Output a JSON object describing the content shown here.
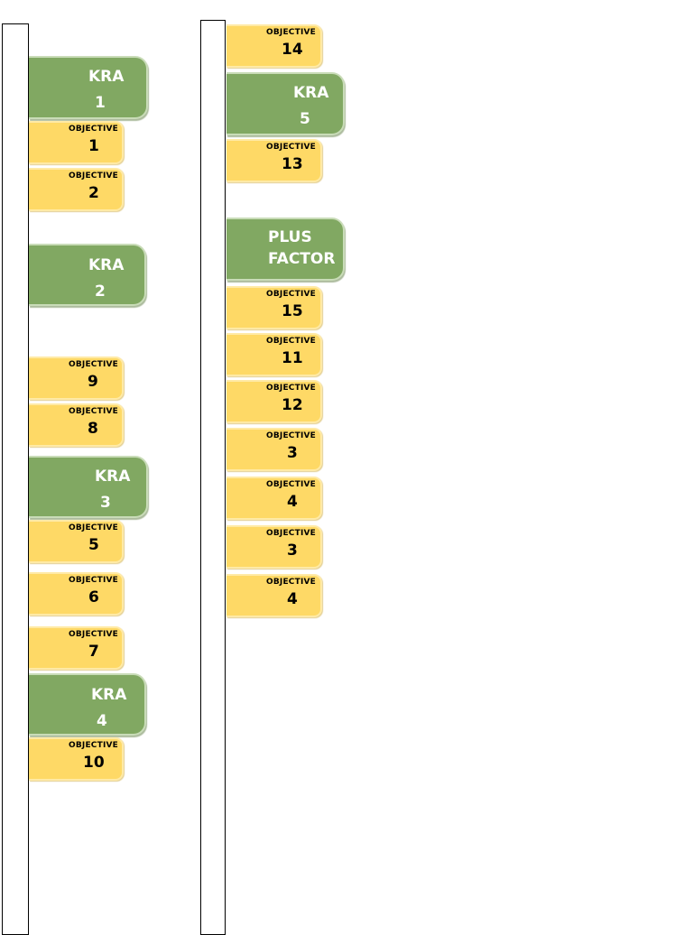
{
  "left_column": [
    {
      "type": "kra",
      "line1": "KRA",
      "line2": "1"
    },
    {
      "type": "objective",
      "label": "OBJECTIVE",
      "number": "1"
    },
    {
      "type": "objective",
      "label": "OBJECTIVE",
      "number": "2"
    },
    {
      "type": "kra",
      "line1": "KRA",
      "line2": "2"
    },
    {
      "type": "objective",
      "label": "OBJECTIVE",
      "number": "9"
    },
    {
      "type": "objective",
      "label": "OBJECTIVE",
      "number": "8"
    },
    {
      "type": "kra",
      "line1": "KRA",
      "line2": "3"
    },
    {
      "type": "objective",
      "label": "OBJECTIVE",
      "number": "5"
    },
    {
      "type": "objective",
      "label": "OBJECTIVE",
      "number": "6"
    },
    {
      "type": "objective",
      "label": "OBJECTIVE",
      "number": "7"
    },
    {
      "type": "kra",
      "line1": "KRA",
      "line2": "4"
    },
    {
      "type": "objective",
      "label": "OBJECTIVE",
      "number": "10"
    }
  ],
  "right_column": [
    {
      "type": "objective",
      "label": "OBJECTIVE",
      "number": "14"
    },
    {
      "type": "kra",
      "line1": "KRA",
      "line2": "5"
    },
    {
      "type": "objective",
      "label": "OBJECTIVE",
      "number": "13"
    },
    {
      "type": "kra",
      "line1": "PLUS",
      "line2": "FACTOR"
    },
    {
      "type": "objective",
      "label": "OBJECTIVE",
      "number": "15"
    },
    {
      "type": "objective",
      "label": "OBJECTIVE",
      "number": "11"
    },
    {
      "type": "objective",
      "label": "OBJECTIVE",
      "number": "12"
    },
    {
      "type": "objective",
      "label": "OBJECTIVE",
      "number": "3"
    },
    {
      "type": "objective",
      "label": "OBJECTIVE",
      "number": "4"
    },
    {
      "type": "objective",
      "label": "OBJECTIVE",
      "number": "3"
    },
    {
      "type": "objective",
      "label": "OBJECTIVE",
      "number": "4"
    }
  ],
  "colors": {
    "kra_fill": "#81a862",
    "objective_fill": "#fed966",
    "rail_border": "#000000"
  }
}
